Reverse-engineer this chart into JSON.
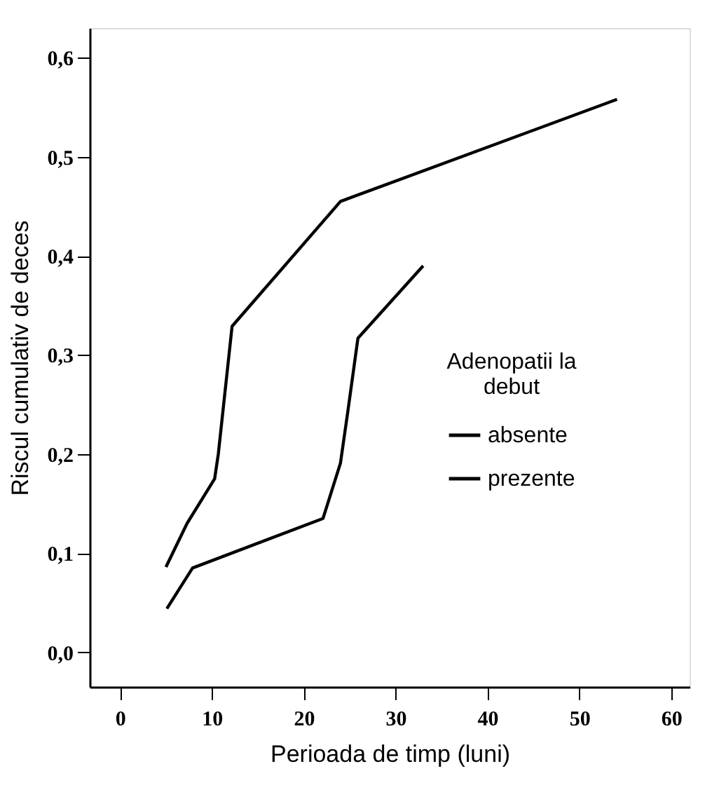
{
  "chart_data": {
    "type": "line",
    "xlabel": "Perioada de timp (luni)",
    "ylabel": "Riscul cumulativ de deces",
    "legend_title": "Adenopatii la debut",
    "series": [
      {
        "name": "absente",
        "color": "#000000",
        "x": [
          5.0,
          7.3,
          10.3,
          10.7,
          12.2,
          24.0,
          54.1
        ],
        "values": [
          0.086,
          0.13,
          0.175,
          0.2,
          0.329,
          0.455,
          0.558
        ]
      },
      {
        "name": "prezente",
        "color": "#000000",
        "x": [
          5.1,
          7.9,
          22.1,
          24.0,
          24.8,
          25.9,
          33.0
        ],
        "values": [
          0.044,
          0.085,
          0.135,
          0.191,
          0.243,
          0.317,
          0.39
        ]
      }
    ],
    "xlim": [
      -3.3,
      62
    ],
    "xticks": [
      0,
      10,
      20,
      30,
      40,
      50,
      60
    ],
    "ylim": [
      -0.035,
      0.63
    ],
    "yticks": [
      {
        "value": 0.0,
        "label": "0,0"
      },
      {
        "value": 0.1,
        "label": "0,1"
      },
      {
        "value": 0.2,
        "label": "0,2"
      },
      {
        "value": 0.3,
        "label": "0,3"
      },
      {
        "value": 0.4,
        "label": "0,4"
      },
      {
        "value": 0.5,
        "label": "0,5"
      },
      {
        "value": 0.6,
        "label": "0,6"
      }
    ],
    "grid": false,
    "legend": "right",
    "line_style": "solid",
    "marker": "none"
  }
}
